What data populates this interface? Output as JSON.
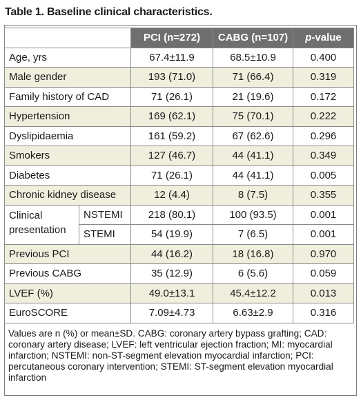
{
  "title": "Table 1. Baseline clinical characteristics.",
  "columns": [
    "PCI (n=272)",
    "CABG (n=107)",
    "p-value"
  ],
  "rows": [
    {
      "label": "Age, yrs",
      "pci": "67.4±11.9",
      "cabg": "68.5±10.9",
      "p": "0.400"
    },
    {
      "label": "Male gender",
      "pci": "193 (71.0)",
      "cabg": "71 (66.4)",
      "p": "0.319"
    },
    {
      "label": "Family history of CAD",
      "pci": "71 (26.1)",
      "cabg": "21 (19.6)",
      "p": "0.172"
    },
    {
      "label": "Hypertension",
      "pci": "169 (62.1)",
      "cabg": "75 (70.1)",
      "p": "0.222"
    },
    {
      "label": "Dyslipidaemia",
      "pci": "161 (59.2)",
      "cabg": "67 (62.6)",
      "p": "0.296"
    },
    {
      "label": "Smokers",
      "pci": "127 (46.7)",
      "cabg": "44 (41.1)",
      "p": "0.349"
    },
    {
      "label": "Diabetes",
      "pci": "71 (26.1)",
      "cabg": "44 (41.1)",
      "p": "0.005"
    },
    {
      "label": "Chronic kidney disease",
      "pci": "12 (4.4)",
      "cabg": "8 (7.5)",
      "p": "0.355"
    }
  ],
  "clinical": {
    "label_line1": "Clinical",
    "label_line2": "presentation",
    "sub": [
      {
        "label": "NSTEMI",
        "pci": "218 (80.1)",
        "cabg": "100 (93.5)",
        "p": "0.001"
      },
      {
        "label": "STEMI",
        "pci": "54 (19.9)",
        "cabg": "7 (6.5)",
        "p": "0.001"
      }
    ]
  },
  "rows_after": [
    {
      "label": "Previous PCI",
      "pci": "44 (16.2)",
      "cabg": "18 (16.8)",
      "p": "0.970"
    },
    {
      "label": "Previous CABG",
      "pci": "35 (12.9)",
      "cabg": "6 (5.6)",
      "p": "0.059"
    },
    {
      "label": "LVEF (%)",
      "pci": "49.0±13.1",
      "cabg": "45.4±12.2",
      "p": "0.013"
    },
    {
      "label": "EuroSCORE",
      "pci": "7.09±4.73",
      "cabg": "6.63±2.9",
      "p": "0.316"
    }
  ],
  "footnote": "Values are n (%) or mean±SD. CABG: coronary artery bypass grafting; CAD: coronary artery disease; LVEF: left ventricular ejection fraction; MI: myocardial infarction; NSTEMI: non-ST-segment elevation myocardial infarction; PCI: percutaneous coronary intervention; STEMI: ST-segment elevation myocardial infarction",
  "colors": {
    "header_bg": "#6f6f6f",
    "shade": "#f0eedd"
  }
}
